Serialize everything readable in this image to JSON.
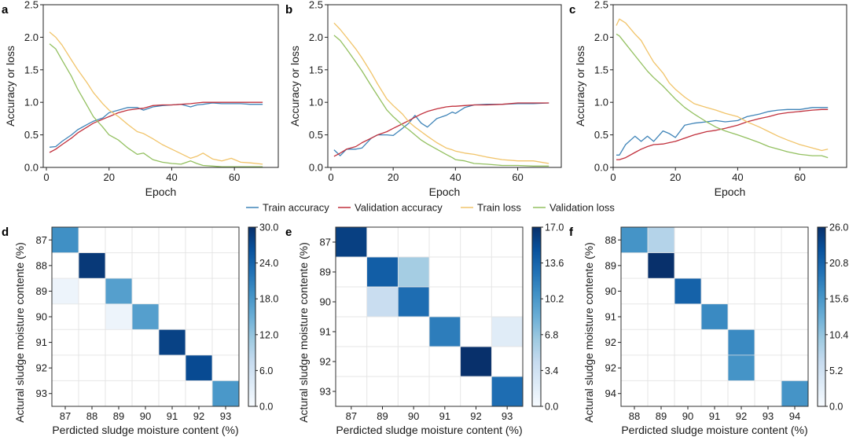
{
  "chart_data": [
    {
      "panel": "a",
      "type": "line",
      "xlabel": "Epoch",
      "ylabel": "Accuracy or loss",
      "xlim": [
        -1,
        74
      ],
      "ylim": [
        0,
        2.5
      ],
      "xticks": [
        0,
        20,
        40,
        60
      ],
      "yticks": [
        0.0,
        0.5,
        1.0,
        1.5,
        2.0,
        2.5
      ],
      "x": [
        1,
        3,
        5,
        8,
        10,
        13,
        15,
        18,
        20,
        23,
        26,
        29,
        31,
        34,
        37,
        40,
        43,
        46,
        48,
        50,
        53,
        56,
        59,
        62,
        65,
        69
      ],
      "series": [
        {
          "name": "Train accuracy",
          "values": [
            0.31,
            0.32,
            0.4,
            0.5,
            0.58,
            0.66,
            0.71,
            0.76,
            0.84,
            0.88,
            0.92,
            0.92,
            0.88,
            0.93,
            0.95,
            0.96,
            0.97,
            0.93,
            0.96,
            0.97,
            0.99,
            0.98,
            0.98,
            0.98,
            0.97,
            0.97
          ]
        },
        {
          "name": "Validation accuracy",
          "values": [
            0.23,
            0.28,
            0.35,
            0.45,
            0.53,
            0.62,
            0.68,
            0.74,
            0.78,
            0.84,
            0.88,
            0.9,
            0.91,
            0.95,
            0.96,
            0.96,
            0.97,
            0.98,
            0.99,
            1.0,
            1.0,
            1.0,
            1.0,
            1.0,
            1.0,
            1.0
          ]
        },
        {
          "name": "Train loss",
          "values": [
            2.08,
            2.0,
            1.88,
            1.65,
            1.5,
            1.3,
            1.15,
            0.98,
            0.88,
            0.78,
            0.66,
            0.55,
            0.52,
            0.44,
            0.35,
            0.28,
            0.21,
            0.14,
            0.17,
            0.22,
            0.13,
            0.1,
            0.14,
            0.08,
            0.07,
            0.05
          ]
        },
        {
          "name": "Validation loss",
          "values": [
            1.9,
            1.82,
            1.65,
            1.4,
            1.2,
            0.95,
            0.78,
            0.62,
            0.5,
            0.42,
            0.3,
            0.2,
            0.22,
            0.12,
            0.08,
            0.06,
            0.05,
            0.1,
            0.06,
            0.03,
            0.02,
            0.01,
            0.01,
            0.01,
            0.01,
            0.01
          ]
        }
      ]
    },
    {
      "panel": "b",
      "type": "line",
      "xlabel": "Epoch",
      "ylabel": "Accuracy or loss",
      "xlim": [
        -1,
        74
      ],
      "ylim": [
        0,
        2.5
      ],
      "xticks": [
        0,
        20,
        40,
        60
      ],
      "yticks": [
        0.0,
        0.5,
        1.0,
        1.5,
        2.0,
        2.5
      ],
      "x": [
        1,
        3,
        5,
        8,
        10,
        13,
        15,
        18,
        20,
        23,
        25,
        27,
        29,
        31,
        34,
        37,
        39,
        40,
        43,
        46,
        50,
        55,
        60,
        65,
        70
      ],
      "series": [
        {
          "name": "Train accuracy",
          "values": [
            0.27,
            0.18,
            0.28,
            0.28,
            0.3,
            0.45,
            0.5,
            0.5,
            0.49,
            0.6,
            0.68,
            0.8,
            0.68,
            0.62,
            0.75,
            0.8,
            0.85,
            0.83,
            0.92,
            0.96,
            0.97,
            0.97,
            0.98,
            0.98,
            0.99
          ]
        },
        {
          "name": "Validation accuracy",
          "values": [
            0.17,
            0.22,
            0.28,
            0.32,
            0.38,
            0.45,
            0.5,
            0.55,
            0.6,
            0.67,
            0.72,
            0.77,
            0.82,
            0.86,
            0.9,
            0.93,
            0.94,
            0.94,
            0.95,
            0.96,
            0.96,
            0.97,
            0.99,
            0.99,
            0.99
          ]
        },
        {
          "name": "Train loss",
          "values": [
            2.22,
            2.12,
            2.0,
            1.82,
            1.68,
            1.45,
            1.28,
            1.05,
            0.95,
            0.82,
            0.7,
            0.62,
            0.55,
            0.48,
            0.38,
            0.3,
            0.27,
            0.25,
            0.22,
            0.2,
            0.16,
            0.12,
            0.1,
            0.1,
            0.06
          ]
        },
        {
          "name": "Validation loss",
          "values": [
            2.03,
            1.95,
            1.82,
            1.62,
            1.48,
            1.25,
            1.1,
            0.88,
            0.78,
            0.65,
            0.58,
            0.5,
            0.42,
            0.36,
            0.28,
            0.2,
            0.15,
            0.12,
            0.1,
            0.06,
            0.05,
            0.03,
            0.03,
            0.02,
            0.02
          ]
        }
      ]
    },
    {
      "panel": "c",
      "type": "line",
      "xlabel": "Epoch",
      "ylabel": "Accuracy or loss",
      "xlim": [
        0,
        75
      ],
      "ylim": [
        0,
        2.5
      ],
      "xticks": [
        0,
        20,
        40,
        60
      ],
      "yticks": [
        0.0,
        0.5,
        1.0,
        1.5,
        2.0,
        2.5
      ],
      "x": [
        1,
        2,
        4,
        7,
        9,
        11,
        13,
        16,
        18,
        20,
        23,
        26,
        30,
        33,
        36,
        40,
        43,
        47,
        50,
        53,
        56,
        60,
        64,
        67,
        69
      ],
      "series": [
        {
          "name": "Train accuracy",
          "values": [
            0.19,
            0.19,
            0.35,
            0.48,
            0.4,
            0.48,
            0.4,
            0.56,
            0.52,
            0.46,
            0.65,
            0.68,
            0.7,
            0.72,
            0.7,
            0.72,
            0.78,
            0.82,
            0.86,
            0.88,
            0.89,
            0.89,
            0.92,
            0.92,
            0.92
          ]
        },
        {
          "name": "Validation accuracy",
          "values": [
            0.12,
            0.12,
            0.15,
            0.23,
            0.28,
            0.32,
            0.35,
            0.36,
            0.38,
            0.4,
            0.45,
            0.5,
            0.55,
            0.57,
            0.6,
            0.65,
            0.7,
            0.75,
            0.78,
            0.82,
            0.84,
            0.86,
            0.88,
            0.89,
            0.89
          ]
        },
        {
          "name": "Train loss",
          "values": [
            2.18,
            2.28,
            2.22,
            2.05,
            1.95,
            1.78,
            1.62,
            1.45,
            1.3,
            1.2,
            1.08,
            0.98,
            0.92,
            0.88,
            0.83,
            0.78,
            0.7,
            0.62,
            0.55,
            0.48,
            0.42,
            0.35,
            0.3,
            0.26,
            0.28
          ]
        },
        {
          "name": "Validation loss",
          "values": [
            2.05,
            2.02,
            1.9,
            1.72,
            1.6,
            1.48,
            1.38,
            1.25,
            1.15,
            1.05,
            0.92,
            0.82,
            0.7,
            0.62,
            0.56,
            0.5,
            0.45,
            0.38,
            0.32,
            0.28,
            0.24,
            0.2,
            0.18,
            0.18,
            0.15
          ]
        }
      ]
    },
    {
      "panel": "d",
      "type": "heatmap",
      "xlabel": "Perdicted sludge moisture content (%)",
      "ylabel": "Actural sludge moisture contente (%)",
      "x_categories": [
        "87",
        "88",
        "89",
        "90",
        "91",
        "92",
        "93"
      ],
      "y_categories": [
        "87",
        "88",
        "89",
        "90",
        "91",
        "92",
        "93"
      ],
      "values": [
        [
          19,
          0,
          0,
          0,
          0,
          0,
          0
        ],
        [
          0,
          29,
          0,
          0,
          0,
          0,
          0
        ],
        [
          2,
          0,
          17,
          0,
          0,
          0,
          0
        ],
        [
          0,
          0,
          2,
          17,
          0,
          0,
          0
        ],
        [
          0,
          0,
          0,
          0,
          28,
          0,
          0
        ],
        [
          0,
          0,
          0,
          0,
          0,
          27,
          0
        ],
        [
          0,
          0,
          0,
          0,
          0,
          0,
          18
        ]
      ],
      "colorbar_range": [
        0,
        30
      ],
      "colorbar_ticks": [
        "0.0",
        "6.0",
        "12.0",
        "18.0",
        "24.0",
        "30.0"
      ]
    },
    {
      "panel": "e",
      "type": "heatmap",
      "xlabel": "Perdicted sludge moisture content (%)",
      "ylabel": "Actural sludge moisture contente (%)",
      "x_categories": [
        "87",
        "89",
        "90",
        "91",
        "92",
        "93"
      ],
      "y_categories": [
        "87",
        "89",
        "90",
        "91",
        "92",
        "93"
      ],
      "values": [
        [
          16,
          0,
          0,
          0,
          0,
          0
        ],
        [
          0,
          14,
          6,
          0,
          0,
          0
        ],
        [
          0,
          4,
          13,
          0,
          0,
          0
        ],
        [
          0,
          0,
          0,
          12,
          0,
          2
        ],
        [
          0,
          0,
          0,
          0,
          17,
          0
        ],
        [
          0,
          0,
          0,
          0,
          0,
          13
        ]
      ],
      "colorbar_range": [
        0,
        17
      ],
      "colorbar_ticks": [
        "0.0",
        "3.4",
        "6.8",
        "10.2",
        "13.6",
        "17.0"
      ]
    },
    {
      "panel": "f",
      "type": "heatmap",
      "xlabel": "Perdicted sludge moisture content (%)",
      "ylabel": "Actural sludge moisture contente (%)",
      "x_categories": [
        "88",
        "89",
        "90",
        "91",
        "92",
        "93",
        "94"
      ],
      "y_categories": [
        "88",
        "89",
        "90",
        "91",
        "92",
        "92",
        "94"
      ],
      "values": [
        [
          16,
          8,
          0,
          0,
          0,
          0,
          0
        ],
        [
          0,
          26,
          0,
          0,
          0,
          0,
          0
        ],
        [
          0,
          0,
          21,
          0,
          0,
          0,
          0
        ],
        [
          0,
          0,
          0,
          17,
          0,
          0,
          0
        ],
        [
          0,
          0,
          0,
          0,
          17,
          0,
          0
        ],
        [
          0,
          0,
          0,
          0,
          16,
          0,
          0
        ],
        [
          0,
          0,
          0,
          0,
          0,
          0,
          16
        ]
      ],
      "colorbar_range": [
        0,
        26
      ],
      "colorbar_ticks": [
        "0.0",
        "5.2",
        "10.4",
        "15.6",
        "20.8",
        "26.0"
      ]
    }
  ],
  "legend": {
    "placement": "center-between-rows",
    "items": [
      {
        "label": "Train accuracy",
        "color": "#3f84b8"
      },
      {
        "label": "Validation accuracy",
        "color": "#c1303c"
      },
      {
        "label": "Train loss",
        "color": "#f1c46a"
      },
      {
        "label": "Validation loss",
        "color": "#93c060"
      }
    ]
  },
  "colors": {
    "train_accuracy": "#3f84b8",
    "validation_accuracy": "#c1303c",
    "train_loss": "#f1c46a",
    "validation_loss": "#93c060",
    "cmap_low": "#ffffff",
    "cmap_high": "#08306b"
  }
}
